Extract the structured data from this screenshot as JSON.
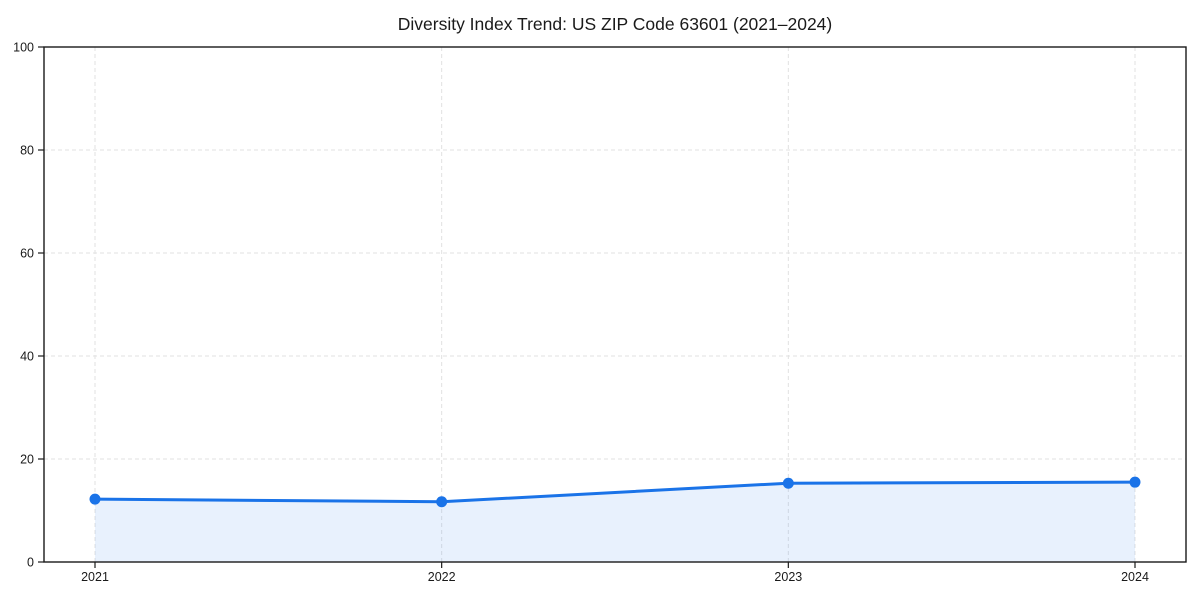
{
  "figure": {
    "background": "#ffffff"
  },
  "chart_data": {
    "type": "area",
    "title": "Diversity Index Trend: US ZIP Code 63601 (2021–2024)",
    "categories": [
      "2021",
      "2022",
      "2023",
      "2024"
    ],
    "values": [
      12.2,
      11.7,
      15.3,
      15.5
    ],
    "xlabel": "",
    "ylabel": "",
    "ylim": [
      0,
      100
    ],
    "yticks": [
      0,
      20,
      40,
      60,
      80,
      100
    ],
    "grid": {
      "visible": true,
      "style": "dashed"
    },
    "legend": {
      "position": "none"
    },
    "colors": {
      "line": "#1a73e8",
      "point": "#1a73e8",
      "fill": "#1a73e8",
      "fill_opacity": 0.1,
      "grid": "#e2e2e2",
      "axis": "#1a1a1a",
      "text": "#1a1a1a"
    }
  }
}
